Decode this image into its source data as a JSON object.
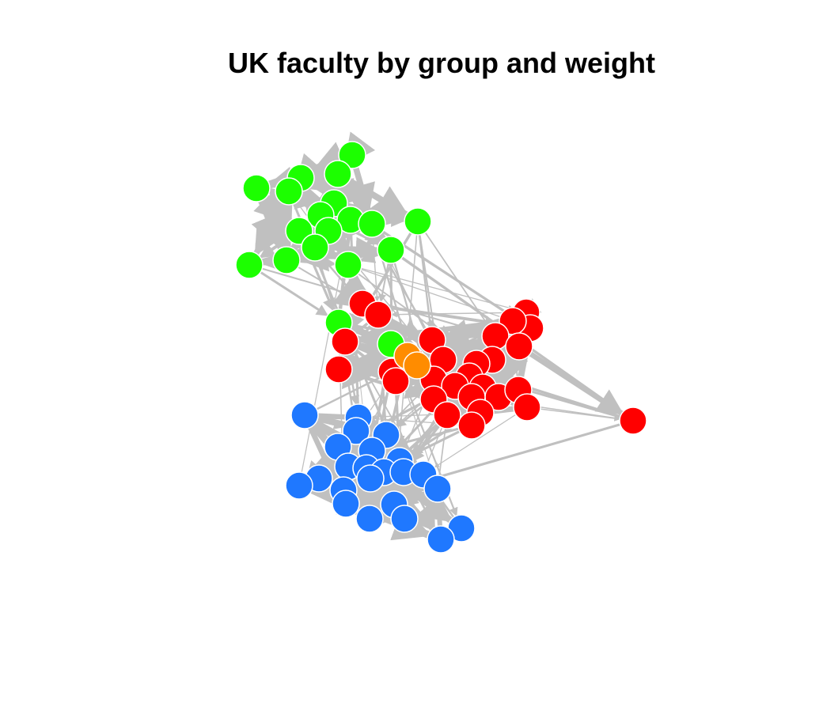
{
  "title": "UK faculty by group and weight",
  "colors": {
    "edge": "#c0c0c0",
    "node_stroke": "#ffffff",
    "group_green": "#1cff00",
    "group_red": "#ff0000",
    "group_blue": "#1f78ff",
    "group_orange": "#ff8c00"
  },
  "groups": [
    "green",
    "red",
    "blue",
    "orange"
  ]
}
